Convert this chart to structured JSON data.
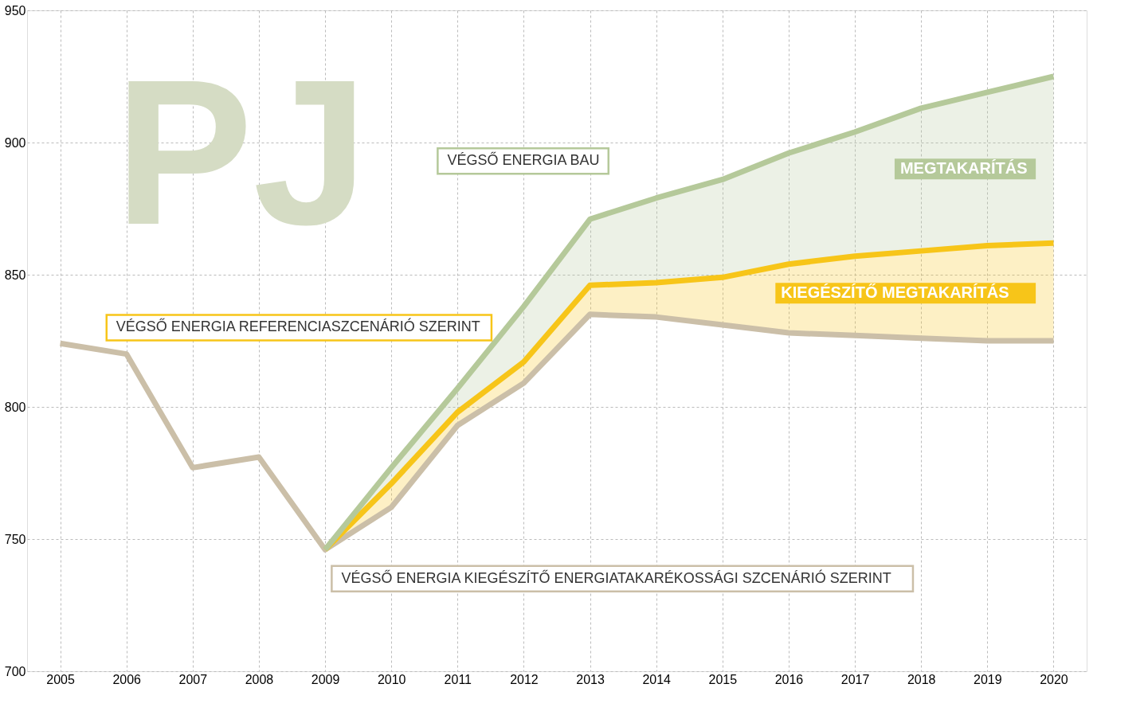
{
  "chart_data": {
    "type": "line",
    "ylabel": "PJ",
    "categories": [
      "2005",
      "2006",
      "2007",
      "2008",
      "2009",
      "2010",
      "2011",
      "2012",
      "2013",
      "2014",
      "2015",
      "2016",
      "2017",
      "2018",
      "2019",
      "2020"
    ],
    "series": [
      {
        "name": "VÉGSŐ ENERGIA BAU",
        "color": "#b5c99a",
        "values": [
          null,
          null,
          null,
          null,
          746,
          777,
          807,
          838,
          871,
          879,
          886,
          896,
          904,
          913,
          919,
          925
        ],
        "lower": [
          null,
          null,
          null,
          null,
          746,
          771,
          798,
          817,
          846,
          847,
          849,
          854,
          857,
          859,
          861,
          862
        ],
        "upper": [
          null,
          null,
          null,
          null,
          746,
          777,
          807,
          838,
          871,
          879,
          886,
          896,
          904,
          913,
          919,
          925
        ]
      },
      {
        "name": "VÉGSŐ ENERGIA REFERENCIASZCENÁRIÓ SZERINT",
        "color": "#f7c519",
        "values": [
          null,
          null,
          null,
          null,
          746,
          771,
          798,
          817,
          846,
          847,
          849,
          854,
          857,
          859,
          861,
          862
        ],
        "lower": [
          null,
          null,
          null,
          null,
          746,
          762,
          793,
          809,
          835,
          834,
          831,
          828,
          827,
          826,
          825,
          825
        ],
        "upper": [
          null,
          null,
          null,
          null,
          746,
          771,
          798,
          817,
          846,
          847,
          849,
          854,
          857,
          859,
          861,
          862
        ]
      },
      {
        "name": "VÉGSŐ ENERGIA KIEGÉSZÍTŐ ENERGIATAKARÉKOSSÁGI SZCENÁRIÓ SZERINT",
        "color": "#cbbfa8",
        "values": [
          824,
          820,
          777,
          781,
          746,
          762,
          793,
          809,
          835,
          834,
          831,
          828,
          827,
          826,
          825,
          825
        ]
      }
    ],
    "annotations": [
      "MEGTAKARÍTÁS",
      "KIEGÉSZÍTŐ MEGTAKARÍTÁS"
    ],
    "ylim": [
      700,
      950
    ],
    "yticks": [
      700,
      750,
      800,
      850,
      900,
      950
    ],
    "grid": true,
    "marker": "none",
    "line_style": "solid"
  }
}
